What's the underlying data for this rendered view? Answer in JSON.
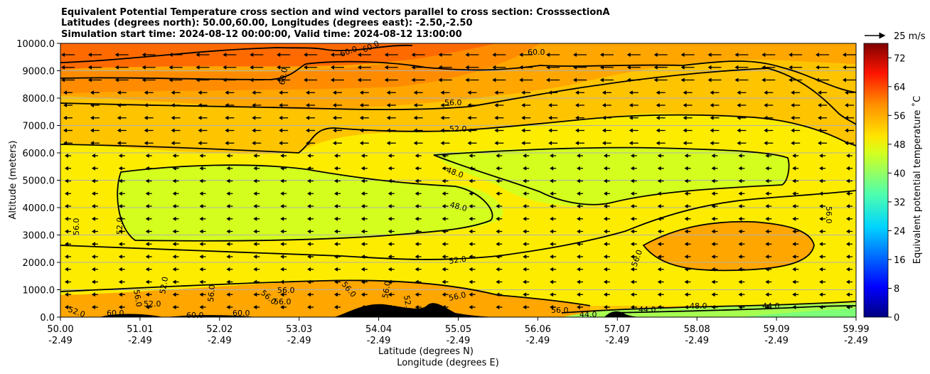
{
  "chart_data": {
    "type": "heatmap",
    "title_lines": [
      "Equivalent Potential Temperature cross section and wind vectors parallel to cross section: CrosssectionA",
      "Latitudes (degrees north): 50.00,60.00, Longitudes (degrees east): -2.50,-2.50",
      "Simulation start time: 2024-08-12 00:00:00, Valid time: 2024-08-12 13:00:00"
    ],
    "ylabel": "Altitude (meters)",
    "xlabel": "Latitude (degrees N)",
    "xlabel2": "Longitude (degrees E)",
    "ylim": [
      0,
      10000
    ],
    "xlim": [
      50.0,
      59.99
    ],
    "y_ticks": [
      "0.0",
      "1000.0",
      "2000.0",
      "3000.0",
      "4000.0",
      "5000.0",
      "6000.0",
      "7000.0",
      "8000.0",
      "9000.0",
      "10000.0"
    ],
    "x_ticks": [
      {
        "lat": "50.00",
        "lon": "-2.49"
      },
      {
        "lat": "51.01",
        "lon": "-2.49"
      },
      {
        "lat": "52.02",
        "lon": "-2.49"
      },
      {
        "lat": "53.03",
        "lon": "-2.49"
      },
      {
        "lat": "54.04",
        "lon": "-2.49"
      },
      {
        "lat": "55.05",
        "lon": "-2.49"
      },
      {
        "lat": "56.06",
        "lon": "-2.49"
      },
      {
        "lat": "57.07",
        "lon": "-2.49"
      },
      {
        "lat": "58.08",
        "lon": "-2.49"
      },
      {
        "lat": "59.09",
        "lon": "-2.49"
      },
      {
        "lat": "59.99",
        "lon": "-2.49"
      }
    ],
    "colorbar": {
      "label": "Equivalent potential temperature ˚C",
      "ticks": [
        "0",
        "8",
        "16",
        "24",
        "32",
        "40",
        "48",
        "56",
        "64",
        "72"
      ],
      "range": [
        0,
        76
      ]
    },
    "quiver_key": "25 m/s",
    "contour_levels": [
      44.0,
      48.0,
      52.0,
      56.0,
      60.0
    ],
    "contour_labels": [
      "60.0",
      "60.0",
      "60.0",
      "60.0",
      "56.0",
      "52.0",
      "48.0",
      "48.0",
      "52.0",
      "56.0",
      "56.0",
      "56.0",
      "52.0",
      "56.0",
      "52.0",
      "56.0",
      "52.0",
      "60.0",
      "60.0",
      "60.0",
      "56.0",
      "56.0",
      "52.0",
      "56.0",
      "56.0",
      "52.0",
      "56.0",
      "56.0",
      "44.0",
      "44.0",
      "48.0",
      "44.0",
      "56.0"
    ]
  },
  "colors": {
    "level_44": "#a7ff50",
    "level_48": "#d4ff1e",
    "level_52": "#fdec00",
    "level_56": "#ffc400",
    "level_58": "#ffa600",
    "level_60": "#ff8c00",
    "level_64": "#ff6a00",
    "terrain": "#000000"
  }
}
